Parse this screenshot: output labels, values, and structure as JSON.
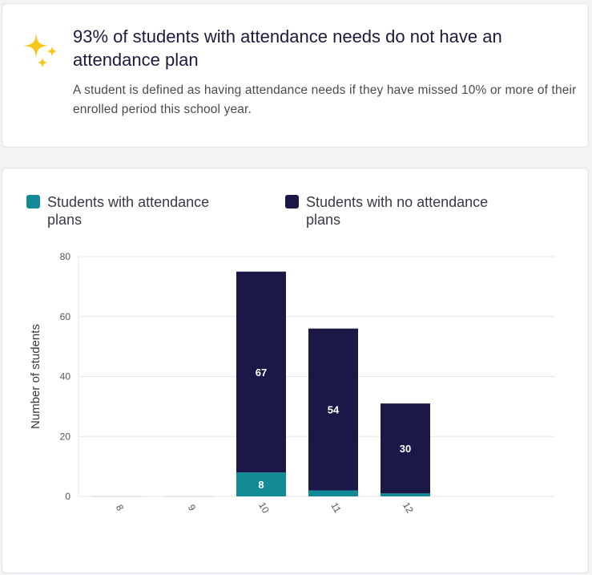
{
  "insight": {
    "headline": "93% of students with attendance needs do not have an attendance plan",
    "subtext": "A student is defined as having attendance needs if they have missed 10% or more of their enrolled period this school year.",
    "icon": "sparkle-icon",
    "icon_color": "#f5c518"
  },
  "colors": {
    "with_plan": "#128b97",
    "without_plan": "#1b1847",
    "grid": "#e6e6ea"
  },
  "chart_data": {
    "type": "bar",
    "stacked": true,
    "categories": [
      "8",
      "9",
      "10",
      "11",
      "12"
    ],
    "series": [
      {
        "name": "Students with attendance plans",
        "values": [
          0,
          0,
          8,
          2,
          1
        ]
      },
      {
        "name": "Students with no attendance plans",
        "values": [
          0,
          0,
          67,
          54,
          30
        ]
      }
    ],
    "data_labels": [
      [
        "",
        "",
        "8",
        "",
        ""
      ],
      [
        "",
        "",
        "67",
        "54",
        "30"
      ]
    ],
    "xlabel": "",
    "ylabel": "Number of students",
    "ylim": [
      0,
      80
    ],
    "yticks": [
      0,
      20,
      40,
      60,
      80
    ],
    "grid": true,
    "legend_position": "top-left"
  }
}
